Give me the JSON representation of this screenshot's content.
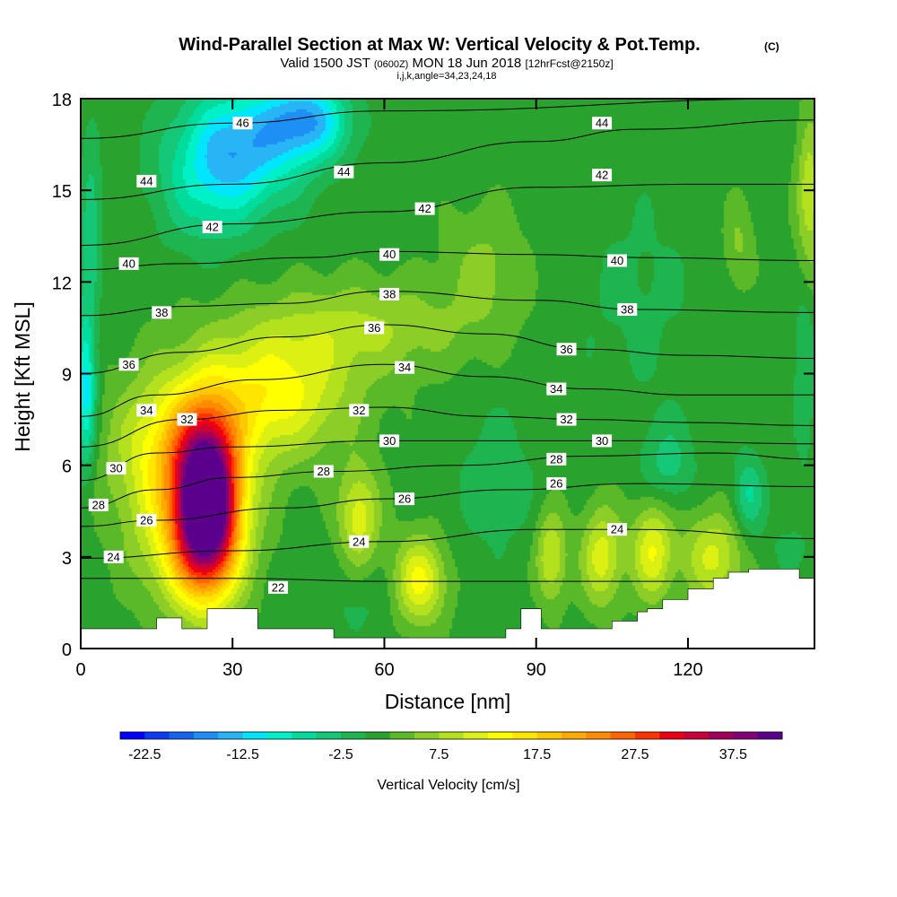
{
  "title": {
    "main": "Wind-Parallel Section at Max W: Vertical Velocity & Pot.Temp.",
    "main_suffix": "(C)",
    "sub_a": "Valid 1500 JST",
    "sub_b": "(0600Z)",
    "sub_c": "MON 18 Jun 2018",
    "sub_d": "[12hrFcst@2150z]",
    "sub_e": "i,j,k,angle=34,23,24,18"
  },
  "chart_data": {
    "type": "heatmap",
    "xlabel": "Distance [nm]",
    "ylabel": "Height [Kft MSL]",
    "xlim": [
      0,
      145
    ],
    "ylim": [
      0,
      18
    ],
    "x_ticks": [
      0,
      30,
      60,
      90,
      120
    ],
    "y_ticks": [
      0,
      3,
      6,
      9,
      12,
      15,
      18
    ],
    "fill_variable": "Vertical Velocity [cm/s]",
    "contour_variable": "Potential Temperature (C)",
    "colorbar": {
      "label": "Vertical Velocity [cm/s]",
      "levels": [
        -25,
        -22.5,
        -20,
        -17.5,
        -15,
        -12.5,
        -10,
        -7.5,
        -5,
        -2.5,
        0,
        2.5,
        5,
        7.5,
        10,
        12.5,
        15,
        17.5,
        20,
        22.5,
        25,
        27.5,
        30,
        32.5,
        35,
        37.5,
        40
      ],
      "tick_labels": [
        "-22.5",
        "-12.5",
        "-2.5",
        "7.5",
        "17.5",
        "27.5",
        "37.5"
      ],
      "tick_values": [
        -22.5,
        -12.5,
        -2.5,
        7.5,
        17.5,
        27.5,
        37.5
      ],
      "colors": [
        "#0000ff",
        "#0a3cf5",
        "#1464f0",
        "#1e90f5",
        "#28b4f5",
        "#00e6ff",
        "#00f0c8",
        "#00dc9b",
        "#14c878",
        "#1eb450",
        "#2aa32e",
        "#5ab928",
        "#8ccd28",
        "#b4e11e",
        "#dcf014",
        "#ffff00",
        "#ffe600",
        "#ffc800",
        "#ffaa00",
        "#ff8c00",
        "#ff6400",
        "#ff3200",
        "#eb0014",
        "#c8003c",
        "#a0005a",
        "#820078",
        "#5a008c"
      ]
    },
    "w_centers": [
      {
        "x": 25,
        "y": 4.7,
        "value": 42,
        "sx": 6,
        "sy": 2.6
      },
      {
        "x": 20,
        "y": 6.3,
        "value": 16,
        "sx": 12,
        "sy": 2.5
      },
      {
        "x": 22,
        "y": 3.2,
        "value": 10,
        "sx": 10,
        "sy": 2.0
      },
      {
        "x": 38,
        "y": 8.3,
        "value": 12,
        "sx": 15,
        "sy": 2.0
      },
      {
        "x": 55,
        "y": 10.5,
        "value": 6,
        "sx": 22,
        "sy": 1.5
      },
      {
        "x": 55,
        "y": 4.3,
        "value": 10,
        "sx": 4,
        "sy": 1.6
      },
      {
        "x": 67,
        "y": 2.2,
        "value": 12,
        "sx": 5,
        "sy": 1.4
      },
      {
        "x": 80,
        "y": 12.5,
        "value": 4,
        "sx": 8,
        "sy": 2.0
      },
      {
        "x": 93,
        "y": 3.0,
        "value": 9,
        "sx": 3,
        "sy": 1.5
      },
      {
        "x": 103,
        "y": 3.0,
        "value": 10,
        "sx": 4,
        "sy": 1.6
      },
      {
        "x": 113,
        "y": 3.2,
        "value": 11,
        "sx": 4,
        "sy": 1.6
      },
      {
        "x": 125,
        "y": 3.0,
        "value": 9,
        "sx": 6,
        "sy": 1.5
      },
      {
        "x": 130,
        "y": 13.2,
        "value": 4,
        "sx": 3,
        "sy": 1.5
      },
      {
        "x": 144,
        "y": 14.8,
        "value": 8,
        "sx": 2.5,
        "sy": 2.5
      },
      {
        "x": 32,
        "y": 16.5,
        "value": -14,
        "sx": 12,
        "sy": 2.0
      },
      {
        "x": 45,
        "y": 17.3,
        "value": -14,
        "sx": 8,
        "sy": 1.3
      },
      {
        "x": 25,
        "y": 15.0,
        "value": -6,
        "sx": 10,
        "sy": 2.0
      },
      {
        "x": 1,
        "y": 8.5,
        "value": -13,
        "sx": 2,
        "sy": 2.6
      },
      {
        "x": 2,
        "y": 14.0,
        "value": -6,
        "sx": 2,
        "sy": 2.5
      },
      {
        "x": 116,
        "y": 6.0,
        "value": -5,
        "sx": 5,
        "sy": 1.4
      },
      {
        "x": 132,
        "y": 5.0,
        "value": -7,
        "sx": 3,
        "sy": 1.3
      },
      {
        "x": 143,
        "y": 9.0,
        "value": -4,
        "sx": 2,
        "sy": 3.0
      },
      {
        "x": 110,
        "y": 11.5,
        "value": -2,
        "sx": 14,
        "sy": 4.0
      },
      {
        "x": 82,
        "y": 5.5,
        "value": -3,
        "sx": 8,
        "sy": 2.5
      },
      {
        "x": 55,
        "y": 1.5,
        "value": -2,
        "sx": 8,
        "sy": 1.2
      },
      {
        "x": 140,
        "y": 3.3,
        "value": -2,
        "sx": 5,
        "sy": 1.0
      }
    ],
    "theta_lines": [
      {
        "level": 22,
        "points": [
          [
            0,
            2.3
          ],
          [
            30,
            2.3
          ],
          [
            60,
            2.2
          ],
          [
            145,
            2.2
          ]
        ]
      },
      {
        "level": 24,
        "points": [
          [
            0,
            2.95
          ],
          [
            30,
            3.2
          ],
          [
            60,
            3.5
          ],
          [
            90,
            3.9
          ],
          [
            110,
            3.9
          ],
          [
            145,
            3.6
          ]
        ]
      },
      {
        "level": 26,
        "points": [
          [
            0,
            4.0
          ],
          [
            15,
            4.2
          ],
          [
            40,
            4.6
          ],
          [
            60,
            4.9
          ],
          [
            85,
            5.2
          ],
          [
            110,
            5.4
          ],
          [
            145,
            5.3
          ]
        ]
      },
      {
        "level": 28,
        "points": [
          [
            0,
            4.6
          ],
          [
            15,
            5.2
          ],
          [
            30,
            5.6
          ],
          [
            50,
            5.8
          ],
          [
            75,
            6.0
          ],
          [
            100,
            6.3
          ],
          [
            125,
            6.4
          ],
          [
            145,
            6.2
          ]
        ]
      },
      {
        "level": 30,
        "points": [
          [
            0,
            5.5
          ],
          [
            15,
            6.4
          ],
          [
            30,
            6.6
          ],
          [
            60,
            6.8
          ],
          [
            90,
            6.8
          ],
          [
            110,
            6.8
          ],
          [
            145,
            6.7
          ]
        ]
      },
      {
        "level": 32,
        "points": [
          [
            0,
            6.6
          ],
          [
            20,
            7.5
          ],
          [
            40,
            7.8
          ],
          [
            60,
            7.9
          ],
          [
            80,
            7.6
          ],
          [
            100,
            7.5
          ],
          [
            120,
            7.4
          ],
          [
            145,
            7.3
          ]
        ]
      },
      {
        "level": 34,
        "points": [
          [
            0,
            7.6
          ],
          [
            15,
            8.3
          ],
          [
            35,
            8.8
          ],
          [
            60,
            9.3
          ],
          [
            80,
            8.9
          ],
          [
            100,
            8.5
          ],
          [
            120,
            8.3
          ],
          [
            145,
            8.3
          ]
        ]
      },
      {
        "level": 36,
        "points": [
          [
            0,
            9.0
          ],
          [
            20,
            9.7
          ],
          [
            40,
            10.2
          ],
          [
            60,
            10.6
          ],
          [
            80,
            10.3
          ],
          [
            100,
            9.8
          ],
          [
            120,
            9.6
          ],
          [
            145,
            9.5
          ]
        ]
      },
      {
        "level": 38,
        "points": [
          [
            0,
            10.9
          ],
          [
            20,
            11.2
          ],
          [
            40,
            11.3
          ],
          [
            60,
            11.7
          ],
          [
            90,
            11.4
          ],
          [
            110,
            11.1
          ],
          [
            145,
            11.0
          ]
        ]
      },
      {
        "level": 40,
        "points": [
          [
            0,
            12.4
          ],
          [
            20,
            12.6
          ],
          [
            45,
            12.8
          ],
          [
            60,
            13.0
          ],
          [
            90,
            12.9
          ],
          [
            110,
            12.8
          ],
          [
            145,
            12.7
          ]
        ]
      },
      {
        "level": 42,
        "points": [
          [
            0,
            13.2
          ],
          [
            30,
            13.9
          ],
          [
            60,
            14.3
          ],
          [
            90,
            15.1
          ],
          [
            120,
            15.2
          ],
          [
            145,
            15.2
          ]
        ]
      },
      {
        "level": 44,
        "points": [
          [
            0,
            14.7
          ],
          [
            30,
            15.2
          ],
          [
            60,
            15.9
          ],
          [
            90,
            16.6
          ],
          [
            110,
            17.0
          ],
          [
            145,
            17.3
          ]
        ]
      },
      {
        "level": 46,
        "points": [
          [
            0,
            16.7
          ],
          [
            30,
            17.2
          ],
          [
            60,
            17.6
          ],
          [
            145,
            18.0
          ]
        ]
      }
    ],
    "contour_labels": [
      {
        "text": "46",
        "x": 32,
        "y": 17.2
      },
      {
        "text": "44",
        "x": 13,
        "y": 15.3
      },
      {
        "text": "44",
        "x": 52,
        "y": 15.6
      },
      {
        "text": "44",
        "x": 103,
        "y": 17.2
      },
      {
        "text": "42",
        "x": 26,
        "y": 13.8
      },
      {
        "text": "42",
        "x": 68,
        "y": 14.4
      },
      {
        "text": "42",
        "x": 103,
        "y": 15.5
      },
      {
        "text": "40",
        "x": 9.5,
        "y": 12.6
      },
      {
        "text": "40",
        "x": 61,
        "y": 12.9
      },
      {
        "text": "40",
        "x": 106,
        "y": 12.7
      },
      {
        "text": "38",
        "x": 16,
        "y": 11.0
      },
      {
        "text": "38",
        "x": 61,
        "y": 11.6
      },
      {
        "text": "38",
        "x": 108,
        "y": 11.1
      },
      {
        "text": "36",
        "x": 9.5,
        "y": 9.3
      },
      {
        "text": "36",
        "x": 58,
        "y": 10.5
      },
      {
        "text": "36",
        "x": 96,
        "y": 9.8
      },
      {
        "text": "34",
        "x": 13,
        "y": 7.8
      },
      {
        "text": "34",
        "x": 64,
        "y": 9.2
      },
      {
        "text": "34",
        "x": 94,
        "y": 8.5
      },
      {
        "text": "32",
        "x": 21,
        "y": 7.5
      },
      {
        "text": "32",
        "x": 55,
        "y": 7.8
      },
      {
        "text": "32",
        "x": 96,
        "y": 7.5
      },
      {
        "text": "30",
        "x": 7,
        "y": 5.9
      },
      {
        "text": "30",
        "x": 61,
        "y": 6.8
      },
      {
        "text": "30",
        "x": 103,
        "y": 6.8
      },
      {
        "text": "28",
        "x": 3.5,
        "y": 4.7
      },
      {
        "text": "28",
        "x": 48,
        "y": 5.8
      },
      {
        "text": "28",
        "x": 94,
        "y": 6.2
      },
      {
        "text": "26",
        "x": 13,
        "y": 4.2
      },
      {
        "text": "26",
        "x": 64,
        "y": 4.9
      },
      {
        "text": "26",
        "x": 94,
        "y": 5.4
      },
      {
        "text": "24",
        "x": 6.5,
        "y": 3.0
      },
      {
        "text": "24",
        "x": 55,
        "y": 3.5
      },
      {
        "text": "24",
        "x": 106,
        "y": 3.9
      },
      {
        "text": "22",
        "x": 39,
        "y": 2.0
      }
    ],
    "terrain_heights": [
      [
        0,
        0.65
      ],
      [
        5,
        0.65
      ],
      [
        10,
        0.65
      ],
      [
        15,
        1.0
      ],
      [
        20,
        0.65
      ],
      [
        25,
        1.3
      ],
      [
        30,
        1.3
      ],
      [
        35,
        0.65
      ],
      [
        40,
        0.65
      ],
      [
        45,
        0.65
      ],
      [
        48,
        0.65
      ],
      [
        50,
        0.35
      ],
      [
        55,
        0.35
      ],
      [
        60,
        0.35
      ],
      [
        65,
        0.35
      ],
      [
        70,
        0.35
      ],
      [
        75,
        0.35
      ],
      [
        80,
        0.35
      ],
      [
        83,
        0.35
      ],
      [
        84,
        0.65
      ],
      [
        87,
        1.3
      ],
      [
        90,
        1.3
      ],
      [
        91,
        0.65
      ],
      [
        95,
        0.65
      ],
      [
        100,
        0.65
      ],
      [
        105,
        0.9
      ],
      [
        110,
        1.2
      ],
      [
        112,
        1.3
      ],
      [
        115,
        1.6
      ],
      [
        120,
        1.95
      ],
      [
        125,
        2.3
      ],
      [
        128,
        2.5
      ],
      [
        132,
        2.6
      ],
      [
        138,
        2.6
      ],
      [
        142,
        2.3
      ],
      [
        145,
        2.3
      ]
    ]
  }
}
